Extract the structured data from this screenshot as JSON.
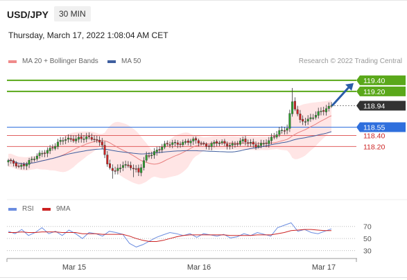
{
  "header": {
    "symbol": "USD/JPY",
    "timeframe": "30 MIN",
    "datetime": "Thursday, March 17, 2022 1:08:04 AM CET"
  },
  "legend": {
    "ma20_label": "MA 20 + Bollinger Bands",
    "ma50_label": "MA 50",
    "credit": "Research © 2022 Trading Central"
  },
  "colors": {
    "up_candle": "#2e9e2e",
    "down_candle": "#cc2222",
    "ma20_band": "#ffdede",
    "ma20_line": "#e88080",
    "ma50_line": "#3f5f9f",
    "resistance": "#5aa81a",
    "support_main": "#2f6fdd",
    "support_minor": "#e06060",
    "price_tag": "#333333",
    "rsi_line": "#6b8de0",
    "rsi_ma_line": "#cc2222",
    "arrow": "#2a5ca8"
  },
  "chart_data": [
    {
      "type": "candlestick",
      "title": "USD/JPY",
      "timeframe": "30 MIN",
      "x_ticks": [
        "Mar 15",
        "Mar 16",
        "Mar 17"
      ],
      "ylim": [
        117.4,
        119.6
      ],
      "current_price": 118.94,
      "levels": [
        {
          "value": 119.4,
          "label": "119.40",
          "kind": "resistance"
        },
        {
          "value": 119.2,
          "label": "119.20",
          "kind": "resistance"
        },
        {
          "value": 118.94,
          "label": "118.94",
          "kind": "price"
        },
        {
          "value": 118.55,
          "label": "118.55",
          "kind": "pivot"
        },
        {
          "value": 118.4,
          "label": "118.40",
          "kind": "support"
        },
        {
          "value": 118.2,
          "label": "118.20",
          "kind": "support"
        }
      ],
      "anchors": [
        {
          "i": 0,
          "p": 117.93
        },
        {
          "i": 4,
          "p": 117.84
        },
        {
          "i": 10,
          "p": 117.98
        },
        {
          "i": 16,
          "p": 118.17
        },
        {
          "i": 21,
          "p": 118.31
        },
        {
          "i": 27,
          "p": 118.36
        },
        {
          "i": 33,
          "p": 118.33
        },
        {
          "i": 36,
          "p": 118.27
        },
        {
          "i": 38,
          "p": 117.86
        },
        {
          "i": 41,
          "p": 117.72
        },
        {
          "i": 44,
          "p": 117.88
        },
        {
          "i": 47,
          "p": 117.85
        },
        {
          "i": 50,
          "p": 117.72
        },
        {
          "i": 53,
          "p": 118.02
        },
        {
          "i": 58,
          "p": 118.17
        },
        {
          "i": 63,
          "p": 118.26
        },
        {
          "i": 68,
          "p": 118.28
        },
        {
          "i": 72,
          "p": 118.3
        },
        {
          "i": 76,
          "p": 118.23
        },
        {
          "i": 80,
          "p": 118.26
        },
        {
          "i": 85,
          "p": 118.24
        },
        {
          "i": 90,
          "p": 118.29
        },
        {
          "i": 95,
          "p": 118.23
        },
        {
          "i": 100,
          "p": 118.28
        },
        {
          "i": 104,
          "p": 118.48
        },
        {
          "i": 107,
          "p": 118.55
        },
        {
          "i": 109,
          "p": 119.0
        },
        {
          "i": 112,
          "p": 118.65
        },
        {
          "i": 115,
          "p": 118.7
        },
        {
          "i": 118,
          "p": 118.78
        },
        {
          "i": 121,
          "p": 118.84
        },
        {
          "i": 124,
          "p": 118.94
        }
      ],
      "n_candles": 125,
      "forecast_arrow": {
        "from": 118.94,
        "to": 119.4
      }
    },
    {
      "type": "line",
      "title": "RSI",
      "series": [
        {
          "name": "RSI",
          "values": [
            62,
            58,
            65,
            55,
            60,
            68,
            58,
            62,
            55,
            64,
            58,
            50,
            60,
            58,
            54,
            62,
            60,
            57,
            42,
            36,
            40,
            46,
            52,
            56,
            60,
            58,
            55,
            58,
            52,
            58,
            56,
            54,
            57,
            51,
            53,
            58,
            55,
            60,
            57,
            54,
            68,
            72,
            76,
            62,
            65,
            60,
            58,
            62,
            66
          ]
        },
        {
          "name": "9MA",
          "values": [
            60,
            60,
            61,
            60,
            60,
            61,
            61,
            61,
            60,
            60,
            60,
            58,
            58,
            58,
            57,
            57,
            57,
            57,
            54,
            50,
            47,
            45,
            45,
            47,
            50,
            53,
            55,
            56,
            56,
            56,
            56,
            56,
            56,
            55,
            55,
            55,
            55,
            56,
            56,
            56,
            58,
            60,
            63,
            64,
            65,
            65,
            64,
            63,
            63
          ]
        }
      ],
      "y_ticks": [
        70,
        50,
        30
      ],
      "ylim": [
        25,
        80
      ]
    }
  ]
}
